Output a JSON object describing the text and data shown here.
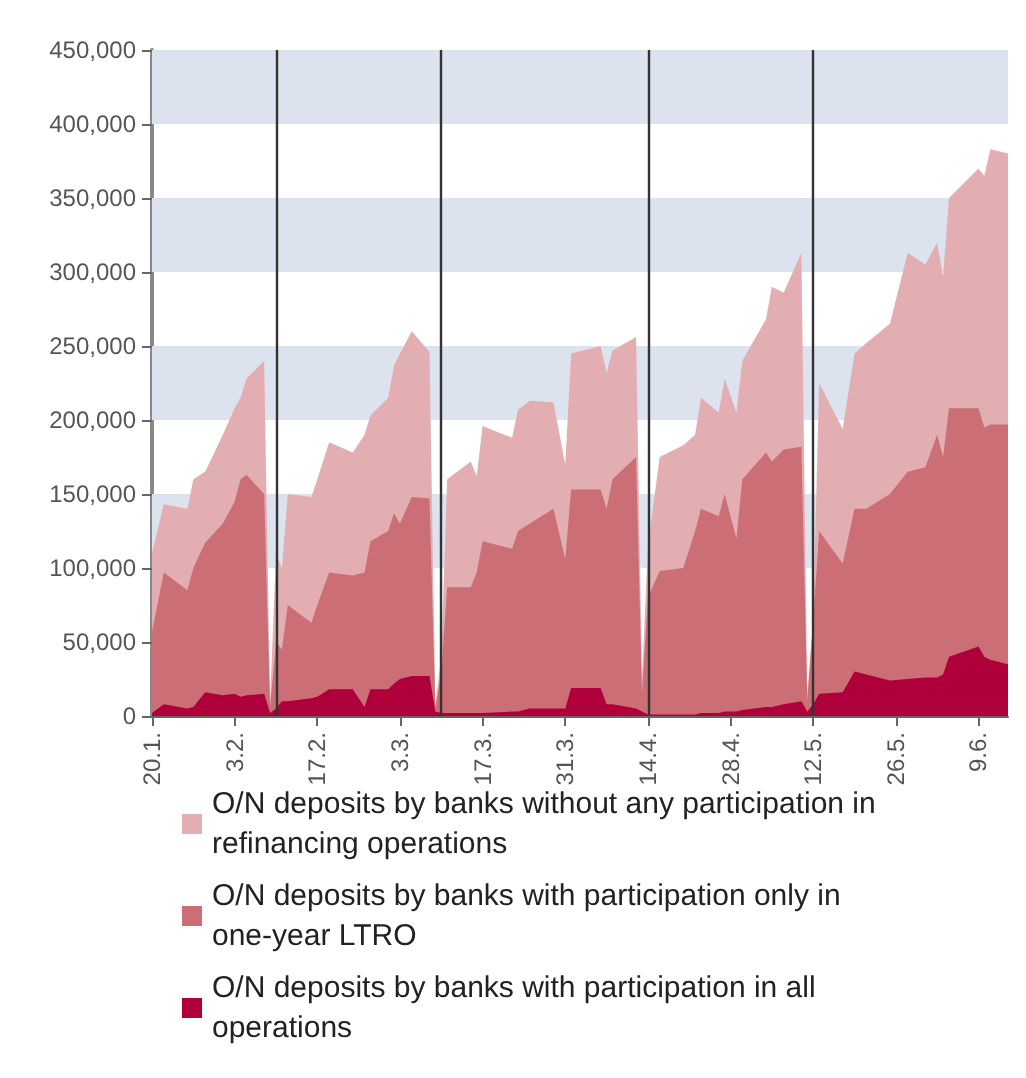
{
  "chart_data": {
    "type": "area",
    "stacked": true,
    "legend": "bottom",
    "grid": false,
    "x": [
      "--01-20",
      "--01-22",
      "--01-26",
      "--01-27",
      "--01-29",
      "--02-01",
      "--02-03",
      "--02-04",
      "--02-05",
      "--02-08",
      "--02-09",
      "--02-10",
      "--02-11",
      "--02-12",
      "--02-16",
      "--02-17",
      "--02-19",
      "--02-23",
      "--02-25",
      "--02-26",
      "--03-01",
      "--03-02",
      "--03-03",
      "--03-05",
      "--03-08",
      "--03-09",
      "--03-10",
      "--03-11",
      "--03-15",
      "--03-16",
      "--03-17",
      "--03-22",
      "--03-23",
      "--03-25",
      "--03-29",
      "--03-31",
      "--04-01",
      "--04-06",
      "--04-07",
      "--04-08",
      "--04-12",
      "--04-13",
      "--04-14",
      "--04-16",
      "--04-20",
      "--04-22",
      "--04-23",
      "--04-26",
      "--04-27",
      "--04-29",
      "--04-30",
      "--05-04",
      "--05-05",
      "--05-07",
      "--05-10",
      "--05-11",
      "--05-12",
      "--05-13",
      "--05-17",
      "--05-19",
      "--05-21",
      "--05-25",
      "--05-28",
      "--05-31",
      "--06-02",
      "--06-03",
      "--06-04",
      "--06-09",
      "--06-10",
      "--06-11",
      "--06-14"
    ],
    "series": [
      {
        "name": "O/N deposits by banks with participation in all operations",
        "color": "#b0003c",
        "values": [
          2000,
          8000,
          5000,
          6000,
          16000,
          14000,
          15000,
          13000,
          14000,
          15000,
          2000,
          5000,
          10000,
          10000,
          12000,
          13000,
          18000,
          18000,
          6000,
          18000,
          18000,
          22000,
          25000,
          27000,
          27000,
          3000,
          2000,
          2000,
          2000,
          2000,
          2000,
          3000,
          3000,
          5000,
          5000,
          5000,
          19000,
          19000,
          8000,
          8000,
          5000,
          3000,
          1000,
          1000,
          1000,
          1000,
          2000,
          2000,
          3000,
          3000,
          4000,
          6000,
          6000,
          8000,
          10000,
          3000,
          8000,
          15000,
          16000,
          30000,
          28000,
          24000,
          25000,
          26000,
          26000,
          28000,
          40000,
          47000,
          40000,
          38000,
          35000
        ]
      },
      {
        "name": "O/N deposits by banks with participation only in one-year LTRO",
        "color": "#cc6e76",
        "values": [
          55000,
          89000,
          80000,
          94000,
          101000,
          116000,
          130000,
          147000,
          149000,
          135000,
          4000,
          45000,
          35000,
          65000,
          51000,
          62000,
          79000,
          77000,
          91000,
          100000,
          107000,
          115000,
          105000,
          121000,
          120000,
          2000,
          28000,
          85000,
          85000,
          95000,
          116000,
          110000,
          122000,
          125000,
          135000,
          101000,
          134000,
          134000,
          132000,
          152000,
          170000,
          12000,
          79000,
          97000,
          99000,
          124000,
          138000,
          133000,
          147000,
          117000,
          156000,
          172000,
          166000,
          172000,
          172000,
          7000,
          56000,
          110000,
          87000,
          110000,
          112000,
          126000,
          140000,
          142000,
          164000,
          147000,
          168000,
          161000,
          155000,
          159000,
          162000
        ]
      },
      {
        "name": "O/N deposits by banks without any participation in refinancing operations",
        "color": "#e3aeb1",
        "values": [
          53000,
          46000,
          55000,
          60000,
          48000,
          60000,
          63000,
          55000,
          65000,
          90000,
          4000,
          60000,
          55000,
          75000,
          85000,
          85000,
          88000,
          83000,
          93000,
          85000,
          90000,
          100000,
          115000,
          112000,
          99000,
          3000,
          10000,
          73000,
          85000,
          65000,
          78000,
          75000,
          82000,
          83000,
          72000,
          64000,
          92000,
          97000,
          92000,
          87000,
          81000,
          10000,
          35000,
          77000,
          83000,
          65000,
          75000,
          70000,
          78000,
          85000,
          80000,
          90000,
          118000,
          106000,
          131000,
          5000,
          1000,
          100000,
          91000,
          105000,
          112000,
          115000,
          148000,
          137000,
          130000,
          122000,
          142000,
          162000,
          170000,
          186000,
          183000
        ]
      }
    ],
    "xlim": [
      "--01-20",
      "--06-14"
    ],
    "xticks": [
      {
        "value": "--01-20",
        "label": "20.1."
      },
      {
        "value": "--02-03",
        "label": "3.2."
      },
      {
        "value": "--02-17",
        "label": "17.2."
      },
      {
        "value": "--03-03",
        "label": "3.3."
      },
      {
        "value": "--03-17",
        "label": "17.3."
      },
      {
        "value": "--03-31",
        "label": "31.3."
      },
      {
        "value": "--04-14",
        "label": "14.4."
      },
      {
        "value": "--04-28",
        "label": "28.4."
      },
      {
        "value": "--05-12",
        "label": "12.5."
      },
      {
        "value": "--05-26",
        "label": "26.5."
      },
      {
        "value": "--06-09",
        "label": "9.6."
      }
    ],
    "ylim": [
      0,
      450000
    ],
    "yticks": [
      {
        "value": 0,
        "label": "0"
      },
      {
        "value": 50000,
        "label": "50,000"
      },
      {
        "value": 100000,
        "label": "100,000"
      },
      {
        "value": 150000,
        "label": "150,000"
      },
      {
        "value": 200000,
        "label": "200,000"
      },
      {
        "value": 250000,
        "label": "250,000"
      },
      {
        "value": 300000,
        "label": "300,000"
      },
      {
        "value": 350000,
        "label": "350,000"
      },
      {
        "value": 400000,
        "label": "400,000"
      },
      {
        "value": 450000,
        "label": "450,000"
      }
    ],
    "bands": [
      {
        "axis": "y",
        "from": 100000,
        "to": 150000,
        "color": "#dde3ee"
      },
      {
        "axis": "y",
        "from": 200000,
        "to": 250000,
        "color": "#dde3ee"
      },
      {
        "axis": "y",
        "from": 300000,
        "to": 350000,
        "color": "#dde3ee"
      },
      {
        "axis": "y",
        "from": 400000,
        "to": 450000,
        "color": "#dde3ee"
      }
    ],
    "ref_lines": [
      {
        "axis": "x",
        "value": "--02-10",
        "color": "#333333"
      },
      {
        "axis": "x",
        "value": "--03-10",
        "color": "#333333"
      },
      {
        "axis": "x",
        "value": "--04-14",
        "color": "#333333"
      },
      {
        "axis": "x",
        "value": "--05-12",
        "color": "#333333"
      }
    ]
  }
}
